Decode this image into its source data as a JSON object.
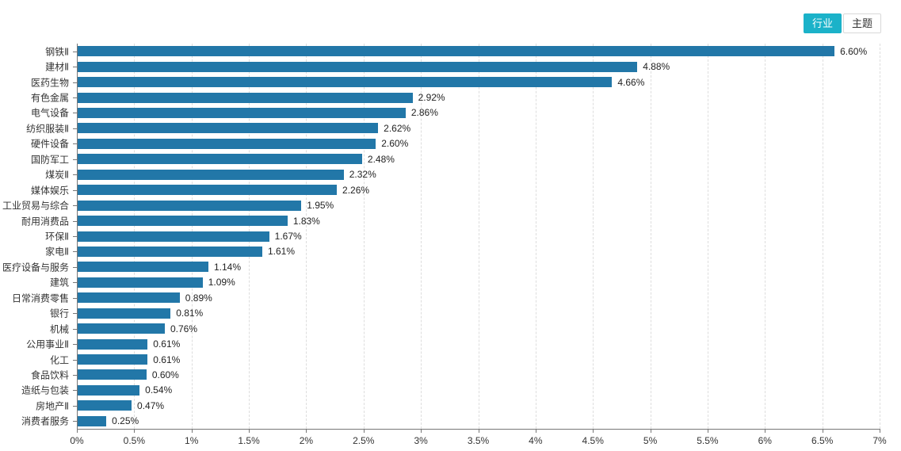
{
  "toggle": {
    "industry_label": "行业",
    "theme_label": "主题"
  },
  "colors": {
    "bar": "#2277a8",
    "accent": "#1bb2c9",
    "gridline": "#dddddd",
    "axis": "#777777",
    "label_text": "#333333",
    "value_text": "#222222"
  },
  "chart_data": {
    "type": "bar",
    "orientation": "horizontal",
    "title": "",
    "xlabel": "",
    "ylabel": "",
    "legend": "none",
    "grid": "dashed-vertical",
    "xlim": [
      0,
      7
    ],
    "xticks": [
      0,
      0.5,
      1,
      1.5,
      2,
      2.5,
      3,
      3.5,
      4,
      4.5,
      5,
      5.5,
      6,
      6.5,
      7
    ],
    "xtick_labels": [
      "0%",
      "0.5%",
      "1%",
      "1.5%",
      "2%",
      "2.5%",
      "3%",
      "3.5%",
      "4%",
      "4.5%",
      "5%",
      "5.5%",
      "6%",
      "6.5%",
      "7%"
    ],
    "categories": [
      "钢铁Ⅱ",
      "建材Ⅱ",
      "医药生物",
      "有色金属",
      "电气设备",
      "纺织服装Ⅱ",
      "硬件设备",
      "国防军工",
      "煤炭Ⅱ",
      "媒体娱乐",
      "工业贸易与综合",
      "耐用消费品",
      "环保Ⅱ",
      "家电Ⅱ",
      "医疗设备与服务",
      "建筑",
      "日常消费零售",
      "银行",
      "机械",
      "公用事业Ⅱ",
      "化工",
      "食品饮料",
      "造纸与包装",
      "房地产Ⅱ",
      "消费者服务"
    ],
    "values": [
      6.6,
      4.88,
      4.66,
      2.92,
      2.86,
      2.62,
      2.6,
      2.48,
      2.32,
      2.26,
      1.95,
      1.83,
      1.67,
      1.61,
      1.14,
      1.09,
      0.89,
      0.81,
      0.76,
      0.61,
      0.61,
      0.6,
      0.54,
      0.47,
      0.25
    ],
    "value_labels": [
      "6.60%",
      "4.88%",
      "4.66%",
      "2.92%",
      "2.86%",
      "2.62%",
      "2.60%",
      "2.48%",
      "2.32%",
      "2.26%",
      "1.95%",
      "1.83%",
      "1.67%",
      "1.61%",
      "1.14%",
      "1.09%",
      "0.89%",
      "0.81%",
      "0.76%",
      "0.61%",
      "0.61%",
      "0.60%",
      "0.54%",
      "0.47%",
      "0.25%"
    ]
  }
}
